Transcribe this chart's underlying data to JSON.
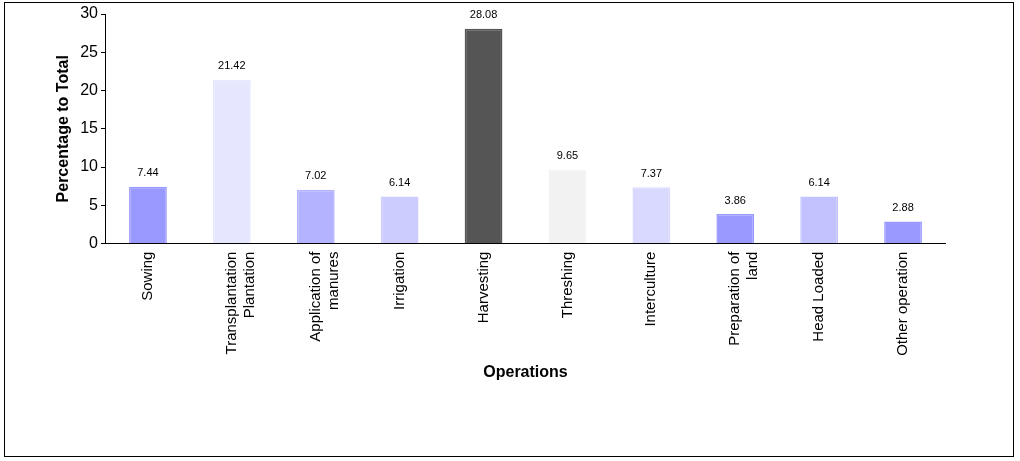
{
  "chart_data": {
    "type": "bar",
    "xlabel": "Operations",
    "ylabel": "Percentage to Total",
    "categories": [
      "Sowing",
      "Transplantation Plantation",
      "Application of manures",
      "Irrigation",
      "Harvesting",
      "Threshing",
      "Interculture",
      "Preparation of land",
      "Head Loaded",
      "Other operation"
    ],
    "values": [
      7.44,
      21.42,
      7.02,
      6.14,
      28.08,
      9.65,
      7.37,
      3.86,
      6.14,
      2.88
    ],
    "colors": [
      "#9999ff",
      "#e6e6ff",
      "#b3b3ff",
      "#ccccff",
      "#555555",
      "#f2f2f2",
      "#d9d9ff",
      "#9999ff",
      "#c2c2ff",
      "#9999ff"
    ],
    "ylim": [
      0,
      30
    ],
    "yticks": [
      0,
      5,
      10,
      15,
      20,
      25,
      30
    ],
    "grid": false,
    "legend": false,
    "data_labels": true
  }
}
